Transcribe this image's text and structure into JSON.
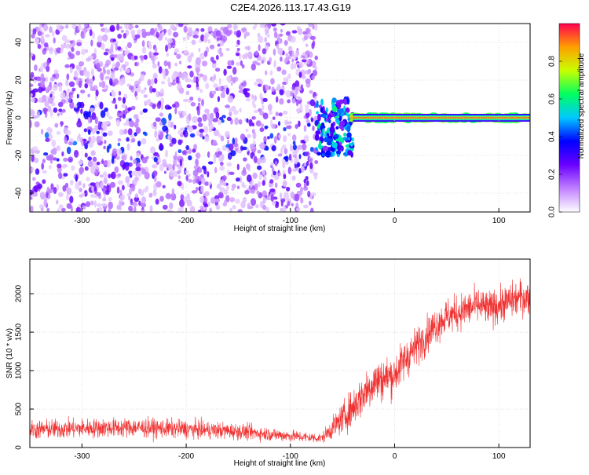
{
  "title": "C2E4.2026.113.17.43.G19",
  "chart_data": [
    {
      "type": "heatmap",
      "title": "",
      "xlabel": "Height of straight line (km)",
      "ylabel": "Frequency (Hz)",
      "xlim": [
        -350,
        130
      ],
      "ylim": [
        -50,
        50
      ],
      "x_ticks": [
        -300,
        -200,
        -100,
        0,
        100
      ],
      "y_ticks": [
        -40,
        -20,
        0,
        20,
        40
      ],
      "grid": true,
      "colorbar": {
        "label": "Normalized spectral amplitude",
        "range": [
          0,
          1
        ],
        "ticks": [
          0.0,
          0.2,
          0.4,
          0.6,
          0.8
        ],
        "colors": [
          "#ffffff",
          "#c080ff",
          "#6a00ff",
          "#0000ff",
          "#00c8ff",
          "#00ff60",
          "#c8ff00",
          "#ffa000",
          "#ff0050"
        ]
      },
      "description_of_data": [
        {
          "x_range": [
            -350,
            -75
          ],
          "frequency_range": [
            -50,
            50
          ],
          "amplitude": [
            0.05,
            0.45
          ]
        },
        {
          "x_range": [
            -75,
            -40
          ],
          "frequency_range": [
            -20,
            10
          ],
          "amplitude": [
            0.2,
            0.6
          ]
        },
        {
          "x_range": [
            -40,
            130
          ],
          "frequency_range": [
            -2,
            2
          ],
          "amplitude": [
            0.6,
            0.95
          ]
        }
      ]
    },
    {
      "type": "line",
      "title": "",
      "xlabel": "Height of straight line (km)",
      "ylabel": "SNR (10 * v/v)",
      "xlim": [
        -350,
        130
      ],
      "ylim": [
        0,
        2450
      ],
      "x_ticks": [
        -300,
        -200,
        -100,
        0,
        100
      ],
      "y_ticks": [
        0,
        500,
        1000,
        1500,
        2000
      ],
      "grid": true,
      "series": [
        {
          "color": "#f03232",
          "x": [
            -350,
            -300,
            -250,
            -200,
            -150,
            -100,
            -70,
            -60,
            -50,
            -40,
            -30,
            -20,
            -10,
            0,
            10,
            20,
            30,
            40,
            50,
            60,
            70,
            80,
            90,
            100,
            110,
            120,
            130
          ],
          "y": [
            230,
            250,
            260,
            240,
            210,
            150,
            120,
            250,
            380,
            520,
            700,
            850,
            900,
            950,
            1150,
            1300,
            1450,
            1600,
            1700,
            1750,
            1800,
            1850,
            1800,
            1850,
            1900,
            1950,
            1950
          ],
          "noise_amplitude": [
            180,
            180,
            180,
            170,
            150,
            110,
            90,
            200,
            280,
            360,
            400,
            420,
            400,
            380,
            380,
            360,
            340,
            340,
            340,
            330,
            330,
            330,
            330,
            330,
            330,
            330,
            330
          ]
        }
      ]
    }
  ]
}
